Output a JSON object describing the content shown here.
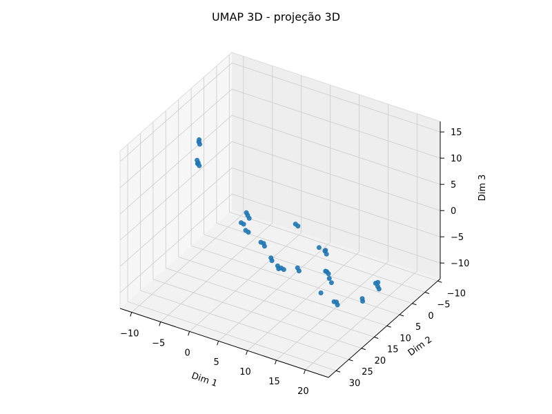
{
  "chart_data": {
    "type": "scatter",
    "projection": "3d",
    "title": "UMAP 3D - projeção 3D",
    "xlabel": "Dim 1",
    "ylabel": "Dim 2",
    "zlabel": "Dim 3",
    "xlim": [
      -12,
      24
    ],
    "ylim": [
      -11,
      33
    ],
    "zlim": [
      -13,
      17
    ],
    "xticks": [
      -10,
      -5,
      0,
      5,
      10,
      15,
      20
    ],
    "yticks": [
      -10,
      -5,
      0,
      5,
      10,
      15,
      20,
      25,
      30
    ],
    "zticks": [
      -10,
      -5,
      0,
      5,
      10,
      15
    ],
    "xtick_labels": [
      "−10",
      "−5",
      "0",
      "5",
      "10",
      "15",
      "20"
    ],
    "ytick_labels": [
      "−10",
      "−5",
      "0",
      "5",
      "10",
      "15",
      "20",
      "25",
      "30"
    ],
    "ztick_labels": [
      "−10",
      "−5",
      "0",
      "5",
      "10",
      "15"
    ],
    "grid": true,
    "marker_color": "#1f77b4",
    "series": [
      {
        "values": [
          [
            -2.0,
            25.0,
            15.0
          ],
          [
            -1.7,
            25.3,
            14.7
          ],
          [
            -2.3,
            24.8,
            15.3
          ],
          [
            -1.9,
            25.5,
            15.1
          ],
          [
            -12.0,
            2.0,
            5.5
          ],
          [
            -11.7,
            2.3,
            5.3
          ],
          [
            -11.9,
            2.1,
            6.0
          ],
          [
            21.5,
            31.0,
            10.0
          ],
          [
            19.0,
            23.0,
            5.0
          ],
          [
            19.5,
            23.5,
            4.8
          ],
          [
            19.2,
            23.2,
            5.3
          ],
          [
            -4.0,
            1.0,
            -6.0
          ],
          [
            -3.6,
            1.3,
            -6.3
          ],
          [
            -4.3,
            0.8,
            -5.7
          ],
          [
            -3.0,
            3.0,
            -8.0
          ],
          [
            -3.3,
            3.4,
            -7.6
          ],
          [
            -6.0,
            -1.0,
            -9.0
          ],
          [
            -5.7,
            -1.3,
            -9.3
          ],
          [
            0.5,
            5.0,
            -8.0
          ],
          [
            0.8,
            5.3,
            -8.3
          ],
          [
            0.3,
            5.6,
            -7.6
          ],
          [
            2.0,
            5.5,
            -10.0
          ],
          [
            2.3,
            5.8,
            -10.3
          ],
          [
            4.0,
            6.0,
            -11.0
          ],
          [
            4.3,
            5.7,
            -11.3
          ],
          [
            2.5,
            4.0,
            -12.0
          ],
          [
            2.8,
            4.3,
            -12.3
          ],
          [
            9.0,
            11.0,
            -7.0
          ],
          [
            9.4,
            11.3,
            -7.3
          ],
          [
            21.0,
            23.0,
            -4.0
          ],
          [
            21.3,
            23.3,
            -4.3
          ],
          [
            20.8,
            23.5,
            -3.8
          ],
          [
            17.0,
            20.0,
            -5.0
          ],
          [
            11.0,
            4.0,
            -10.0
          ],
          [
            11.2,
            3.8,
            -10.4
          ],
          [
            10.9,
            4.3,
            -9.8
          ],
          [
            11.5,
            4.2,
            -11.0
          ],
          [
            11.8,
            4.0,
            -11.8
          ],
          [
            2.5,
            -3.0,
            -7.0
          ],
          [
            2.8,
            -3.3,
            -7.4
          ],
          [
            21.5,
            14.0,
            -7.0
          ],
          [
            21.7,
            14.3,
            -7.3
          ],
          [
            22.5,
            11.0,
            -5.0
          ],
          [
            23.0,
            11.3,
            -5.3
          ],
          [
            23.3,
            11.5,
            -5.6
          ],
          [
            22.8,
            10.8,
            -4.8
          ]
        ]
      }
    ]
  }
}
